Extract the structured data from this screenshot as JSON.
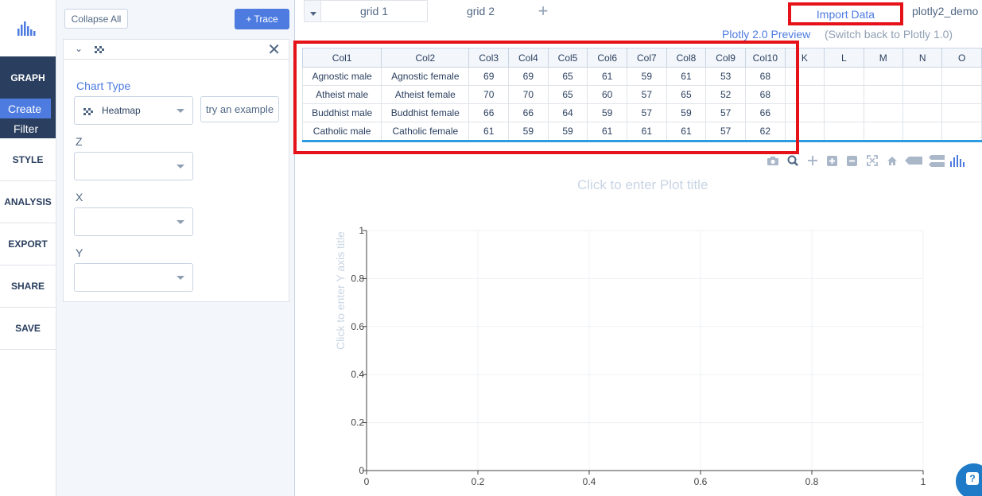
{
  "nav": {
    "logo": "plotly-bars-icon",
    "graph": "GRAPH",
    "create": "Create",
    "filter": "Filter",
    "items": [
      "STYLE",
      "ANALYSIS",
      "EXPORT",
      "SHARE",
      "SAVE"
    ]
  },
  "panel": {
    "collapse_all": "Collapse All",
    "add_trace": "+ Trace",
    "chart_type_label": "Chart Type",
    "chart_type_value": "Heatmap",
    "try_example": "try an example",
    "z_label": "Z",
    "x_label": "X",
    "y_label": "Y"
  },
  "tabs": [
    "grid 1",
    "grid 2"
  ],
  "header": {
    "import_data": "Import Data",
    "user": "plotly2_demo",
    "preview": "Plotly 2.0 Preview",
    "switch_back": "(Switch back to Plotly 1.0)"
  },
  "grid": {
    "headers": [
      "Col1",
      "Col2",
      "Col3",
      "Col4",
      "Col5",
      "Col6",
      "Col7",
      "Col8",
      "Col9",
      "Col10",
      "K",
      "L",
      "M",
      "N",
      "O"
    ],
    "rows": [
      [
        "Agnostic male",
        "Agnostic female",
        "69",
        "69",
        "65",
        "61",
        "59",
        "61",
        "53",
        "68"
      ],
      [
        "Atheist male",
        "Atheist female",
        "70",
        "70",
        "65",
        "60",
        "57",
        "65",
        "52",
        "68"
      ],
      [
        "Buddhist male",
        "Buddhist female",
        "66",
        "66",
        "64",
        "59",
        "57",
        "59",
        "57",
        "66"
      ],
      [
        "Catholic male",
        "Catholic female",
        "61",
        "59",
        "59",
        "61",
        "61",
        "61",
        "57",
        "62"
      ]
    ]
  },
  "plot": {
    "title_placeholder": "Click to enter Plot title",
    "y_title_placeholder": "Click to enter Y axis title"
  },
  "chart_data": {
    "type": "heatmap",
    "xlim": [
      0,
      1
    ],
    "ylim": [
      0,
      1
    ],
    "x_ticks": [
      "0",
      "0.2",
      "0.4",
      "0.6",
      "0.8",
      "1"
    ],
    "y_ticks": [
      "0",
      "0.2",
      "0.4",
      "0.6",
      "0.8",
      "1"
    ],
    "grid": true,
    "series": []
  },
  "modebar": [
    "camera-icon",
    "zoom-icon",
    "pan-icon",
    "zoom-in-icon",
    "zoom-out-icon",
    "autoscale-icon",
    "reset-axes-icon",
    "hover-closest-icon",
    "hover-compare-icon",
    "plotly-logo-icon"
  ]
}
